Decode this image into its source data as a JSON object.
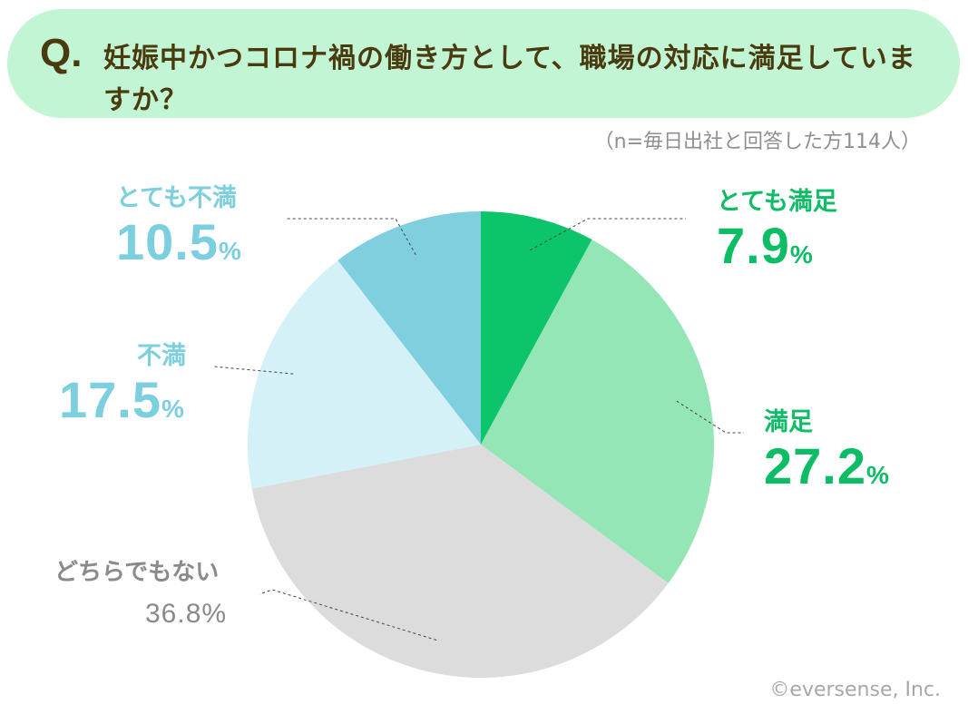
{
  "header": {
    "q_mark": "Q.",
    "question": "妊娠中かつコロナ禍の働き方として、職場の対応に満足していますか？"
  },
  "note": "（n=毎日出社と回答した方114人）",
  "copyright": "©eversense, Inc.",
  "colors": {
    "banner": "#c2f5d3",
    "question_text": "#4a3a10",
    "very_satisfied": "#0cc46a",
    "satisfied": "#94e6b6",
    "neutral": "#dcdcdc",
    "dissatisfied": "#d4f1f7",
    "very_dissatisfied": "#80cfdf"
  },
  "chart_data": {
    "type": "pie",
    "start": "12 o'clock, clockwise",
    "unit": "%",
    "slices": [
      {
        "label": "とても満足",
        "value": 7.9,
        "value_text": "7.9",
        "color": "#0cc46a"
      },
      {
        "label": "満足",
        "value": 27.2,
        "value_text": "27.2",
        "color": "#94e6b6"
      },
      {
        "label": "どちらでもない",
        "value": 36.8,
        "value_text": "36.8",
        "color": "#dcdcdc"
      },
      {
        "label": "不満",
        "value": 17.5,
        "value_text": "17.5",
        "color": "#d4f1f7"
      },
      {
        "label": "とても不満",
        "value": 10.5,
        "value_text": "10.5",
        "color": "#80cfdf"
      }
    ]
  }
}
